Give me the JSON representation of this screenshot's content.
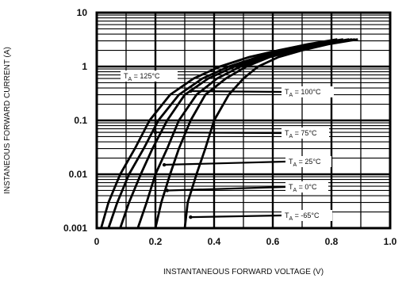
{
  "chart_data": {
    "type": "line",
    "title": "",
    "xlabel": "INSTANTANEOUS FORWARD VOLTAGE (V)",
    "ylabel": "INSTANEOUS FORWARD CURRENT (A)",
    "xlim": [
      0,
      1.0
    ],
    "ylim": [
      0.001,
      10
    ],
    "y_scale": "log",
    "grid": true,
    "x_ticks": [
      "0",
      "0.2",
      "0.4",
      "0.6",
      "0.8",
      "1.0"
    ],
    "x_tick_values": [
      0,
      0.2,
      0.4,
      0.6,
      0.8,
      1.0
    ],
    "y_ticks": [
      "10",
      "1",
      "0.1",
      "0.01",
      "0.001"
    ],
    "y_tick_values": [
      10,
      1,
      0.1,
      0.01,
      0.001
    ],
    "series": [
      {
        "name": "TA = 125°C",
        "temp": "125",
        "x": [
          0.015,
          0.04,
          0.08,
          0.13,
          0.18,
          0.25,
          0.33,
          0.42,
          0.52,
          0.62,
          0.72,
          0.82
        ],
        "y": [
          0.001,
          0.003,
          0.01,
          0.03,
          0.1,
          0.3,
          0.6,
          1.0,
          1.5,
          2.0,
          2.6,
          3.2
        ]
      },
      {
        "name": "TA = 100°C",
        "temp": "100",
        "x": [
          0.04,
          0.07,
          0.11,
          0.16,
          0.21,
          0.28,
          0.36,
          0.45,
          0.55,
          0.64,
          0.74,
          0.84
        ],
        "y": [
          0.001,
          0.003,
          0.01,
          0.03,
          0.1,
          0.3,
          0.6,
          1.0,
          1.5,
          2.0,
          2.6,
          3.2
        ]
      },
      {
        "name": "TA = 75°C",
        "temp": "75",
        "x": [
          0.08,
          0.11,
          0.15,
          0.19,
          0.24,
          0.3,
          0.38,
          0.47,
          0.56,
          0.66,
          0.76,
          0.86
        ],
        "y": [
          0.001,
          0.003,
          0.01,
          0.03,
          0.1,
          0.3,
          0.6,
          1.0,
          1.5,
          2.0,
          2.6,
          3.2
        ]
      },
      {
        "name": "TA = 25°C",
        "temp": "25",
        "x": [
          0.14,
          0.17,
          0.2,
          0.24,
          0.28,
          0.34,
          0.41,
          0.49,
          0.58,
          0.67,
          0.77,
          0.87
        ],
        "y": [
          0.001,
          0.003,
          0.01,
          0.03,
          0.1,
          0.3,
          0.6,
          1.0,
          1.5,
          2.0,
          2.6,
          3.2
        ]
      },
      {
        "name": "TA = 0°C",
        "temp": "0",
        "x": [
          0.2,
          0.22,
          0.25,
          0.28,
          0.32,
          0.37,
          0.44,
          0.51,
          0.59,
          0.68,
          0.78,
          0.88
        ],
        "y": [
          0.001,
          0.003,
          0.01,
          0.03,
          0.1,
          0.3,
          0.6,
          1.0,
          1.5,
          2.0,
          2.6,
          3.2
        ]
      },
      {
        "name": "TA = -65°C",
        "temp": "-65",
        "x": [
          0.3,
          0.31,
          0.34,
          0.37,
          0.4,
          0.45,
          0.5,
          0.55,
          0.62,
          0.7,
          0.79,
          0.89
        ],
        "y": [
          0.001,
          0.003,
          0.01,
          0.03,
          0.1,
          0.3,
          0.6,
          1.0,
          1.5,
          2.0,
          2.6,
          3.2
        ]
      }
    ],
    "annotations": [
      {
        "text": "TA = 125°C",
        "temp": "125",
        "point": [
          0.2,
          0.6
        ]
      },
      {
        "text": "TA = 100°C",
        "temp": "100",
        "point": [
          0.32,
          0.35
        ]
      },
      {
        "text": "TA = 75°C",
        "temp": "75",
        "point": [
          0.2,
          0.06
        ]
      },
      {
        "text": "TA = 25°C",
        "temp": "25",
        "point": [
          0.23,
          0.015
        ]
      },
      {
        "text": "TA = 0°C",
        "temp": "0",
        "point": [
          0.24,
          0.005
        ]
      },
      {
        "text": "TA = -65°C",
        "temp": "-65",
        "point": [
          0.32,
          0.0016
        ]
      }
    ]
  }
}
